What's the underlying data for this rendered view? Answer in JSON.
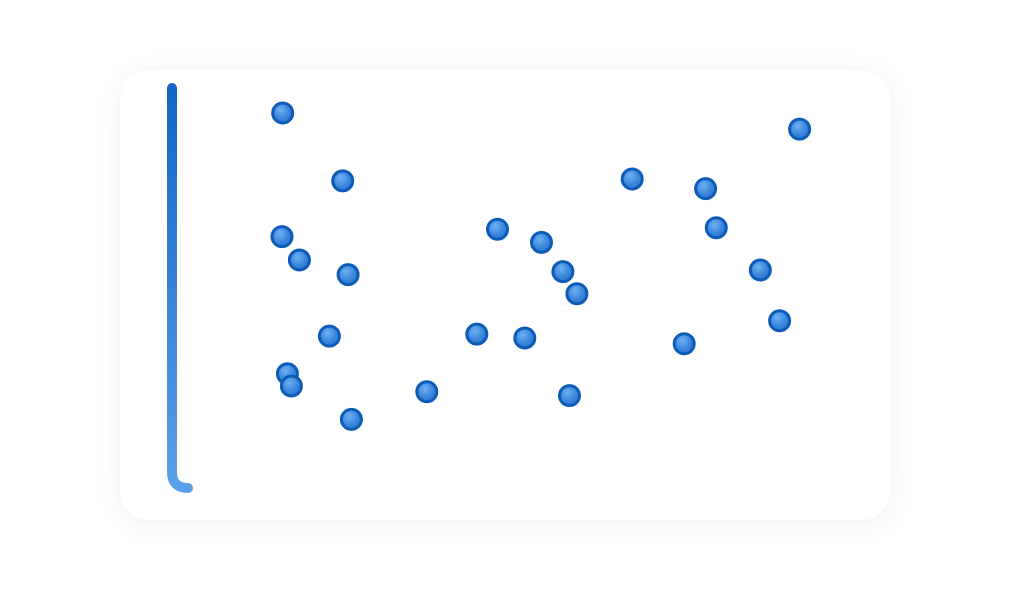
{
  "chart_data": {
    "type": "scatter",
    "title": "",
    "xlabel": "",
    "ylabel": "",
    "xlim": [
      0,
      100
    ],
    "ylim": [
      0,
      100
    ],
    "grid": false,
    "colors": {
      "axis_start": "#1565c8",
      "axis_mid": "#5aa0e8",
      "axis_end": "#1565c8",
      "point_fill": "#3b86dc",
      "point_stroke": "#0d5bb8"
    },
    "points": [
      {
        "x": 14.5,
        "y": 93.5
      },
      {
        "x": 23.5,
        "y": 75.8
      },
      {
        "x": 14.4,
        "y": 61.3
      },
      {
        "x": 17.0,
        "y": 55.2
      },
      {
        "x": 24.3,
        "y": 51.4
      },
      {
        "x": 21.5,
        "y": 35.4
      },
      {
        "x": 15.2,
        "y": 25.6
      },
      {
        "x": 15.8,
        "y": 22.4
      },
      {
        "x": 24.8,
        "y": 13.7
      },
      {
        "x": 36.1,
        "y": 20.9
      },
      {
        "x": 43.6,
        "y": 35.9
      },
      {
        "x": 46.7,
        "y": 63.2
      },
      {
        "x": 50.8,
        "y": 34.9
      },
      {
        "x": 53.3,
        "y": 59.8
      },
      {
        "x": 56.5,
        "y": 52.2
      },
      {
        "x": 58.6,
        "y": 46.4
      },
      {
        "x": 57.5,
        "y": 19.9
      },
      {
        "x": 66.9,
        "y": 76.3
      },
      {
        "x": 77.9,
        "y": 73.8
      },
      {
        "x": 79.5,
        "y": 63.6
      },
      {
        "x": 74.7,
        "y": 33.4
      },
      {
        "x": 86.1,
        "y": 52.6
      },
      {
        "x": 89.0,
        "y": 39.4
      },
      {
        "x": 92.0,
        "y": 89.3
      }
    ]
  }
}
